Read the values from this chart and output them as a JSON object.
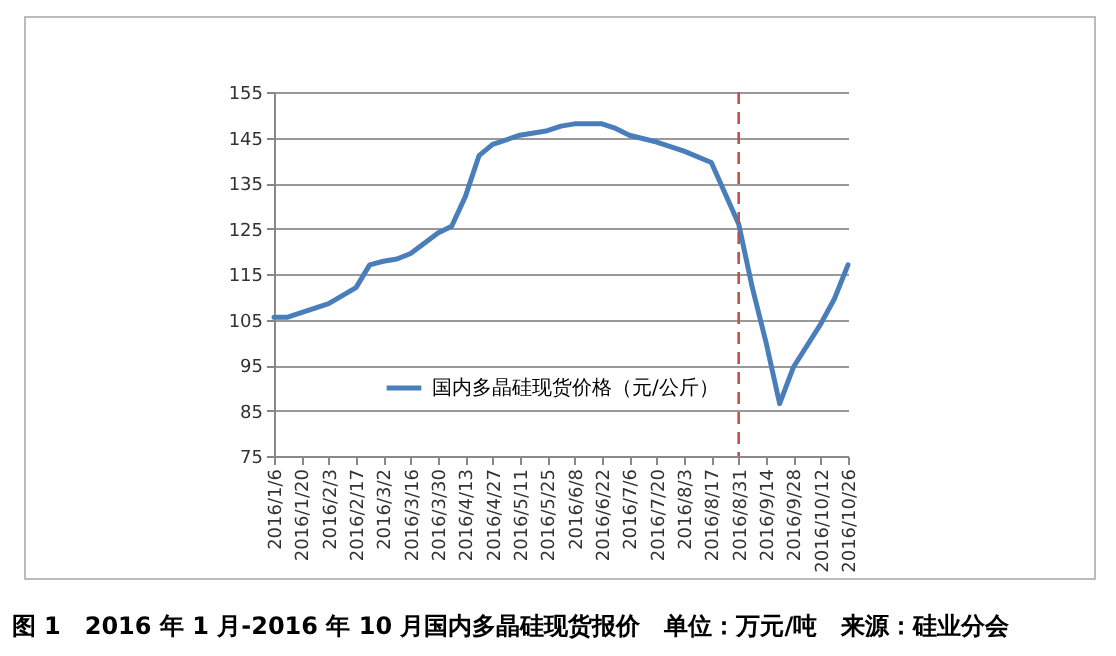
{
  "chart_data": {
    "type": "line",
    "title": "图 1　2016 年 1 月-2016 年 10 月国内多晶硅现货报价　单位：万元/吨　来源：硅业分会",
    "x": [
      "2016-01-06",
      "2016-01-13",
      "2016-01-20",
      "2016-02-03",
      "2016-02-17",
      "2016-02-24",
      "2016-03-02",
      "2016-03-09",
      "2016-03-16",
      "2016-03-30",
      "2016-04-06",
      "2016-04-13",
      "2016-04-20",
      "2016-04-27",
      "2016-05-11",
      "2016-05-25",
      "2016-06-01",
      "2016-06-08",
      "2016-06-22",
      "2016-06-29",
      "2016-07-06",
      "2016-07-20",
      "2016-08-03",
      "2016-08-17",
      "2016-08-31",
      "2016-09-07",
      "2016-09-14",
      "2016-09-21",
      "2016-09-28",
      "2016-10-12",
      "2016-10-19",
      "2016-10-26"
    ],
    "series": [
      {
        "name": "国内多晶硅现货价格（元/公斤）",
        "color": "#4a7ebb",
        "values": [
          105.5,
          105.5,
          106.5,
          108.5,
          112,
          117,
          117.8,
          118.3,
          119.5,
          124,
          125.5,
          132,
          141,
          143.5,
          145.5,
          146.5,
          147.5,
          148,
          148,
          147,
          145.5,
          144,
          142,
          139.5,
          126,
          112,
          100,
          86.5,
          94.5,
          104,
          109.5,
          117
        ]
      }
    ],
    "xlim": [
      "2016-01-06",
      "2016-10-26"
    ],
    "xticks": [
      {
        "value": "2016-01-06",
        "label": "2016/1/6"
      },
      {
        "value": "2016-01-20",
        "label": "2016/1/20"
      },
      {
        "value": "2016-02-03",
        "label": "2016/2/3"
      },
      {
        "value": "2016-02-17",
        "label": "2016/2/17"
      },
      {
        "value": "2016-03-02",
        "label": "2016/3/2"
      },
      {
        "value": "2016-03-16",
        "label": "2016/3/16"
      },
      {
        "value": "2016-03-30",
        "label": "2016/3/30"
      },
      {
        "value": "2016-04-13",
        "label": "2016/4/13"
      },
      {
        "value": "2016-04-27",
        "label": "2016/4/27"
      },
      {
        "value": "2016-05-11",
        "label": "2016/5/11"
      },
      {
        "value": "2016-05-25",
        "label": "2016/5/25"
      },
      {
        "value": "2016-06-08",
        "label": "2016/6/8"
      },
      {
        "value": "2016-06-22",
        "label": "2016/6/22"
      },
      {
        "value": "2016-07-06",
        "label": "2016/7/6"
      },
      {
        "value": "2016-07-20",
        "label": "2016/7/20"
      },
      {
        "value": "2016-08-03",
        "label": "2016/8/3"
      },
      {
        "value": "2016-08-17",
        "label": "2016/8/17"
      },
      {
        "value": "2016-08-31",
        "label": "2016/8/31"
      },
      {
        "value": "2016-09-14",
        "label": "2016/9/14"
      },
      {
        "value": "2016-09-28",
        "label": "2016/9/28"
      },
      {
        "value": "2016-10-12",
        "label": "2016/10/12"
      },
      {
        "value": "2016-10-26",
        "label": "2016/10/26"
      }
    ],
    "ylim": [
      75,
      155
    ],
    "yticks": [
      75,
      85,
      95,
      105,
      115,
      125,
      135,
      145,
      155
    ],
    "grid": "y",
    "legend": "bottom left",
    "marker": "none",
    "line_style": "solid",
    "ref_lines": [
      {
        "axis": "x",
        "value": "2016-08-31",
        "color": "#c0504d",
        "line_style": "dashed"
      }
    ]
  }
}
